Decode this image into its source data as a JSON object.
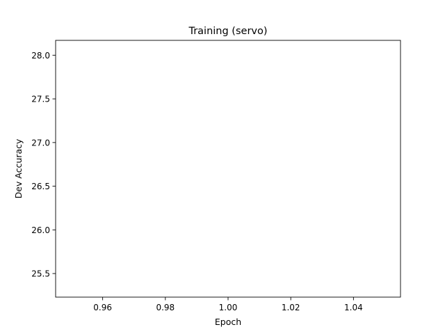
{
  "chart_data": {
    "type": "line",
    "title": "Training (servo)",
    "xlabel": "Epoch",
    "ylabel": "Dev Accuracy",
    "xlim": [
      0.945,
      1.055
    ],
    "ylim": [
      25.23,
      28.17
    ],
    "xticks": [
      0.96,
      0.98,
      1.0,
      1.02,
      1.04
    ],
    "xtick_labels": [
      "0.96",
      "0.98",
      "1.00",
      "1.02",
      "1.04"
    ],
    "yticks": [
      25.5,
      26.0,
      26.5,
      27.0,
      27.5,
      28.0
    ],
    "ytick_labels": [
      "25.5",
      "26.0",
      "26.5",
      "27.0",
      "27.5",
      "28.0"
    ],
    "grid": false,
    "series": []
  }
}
